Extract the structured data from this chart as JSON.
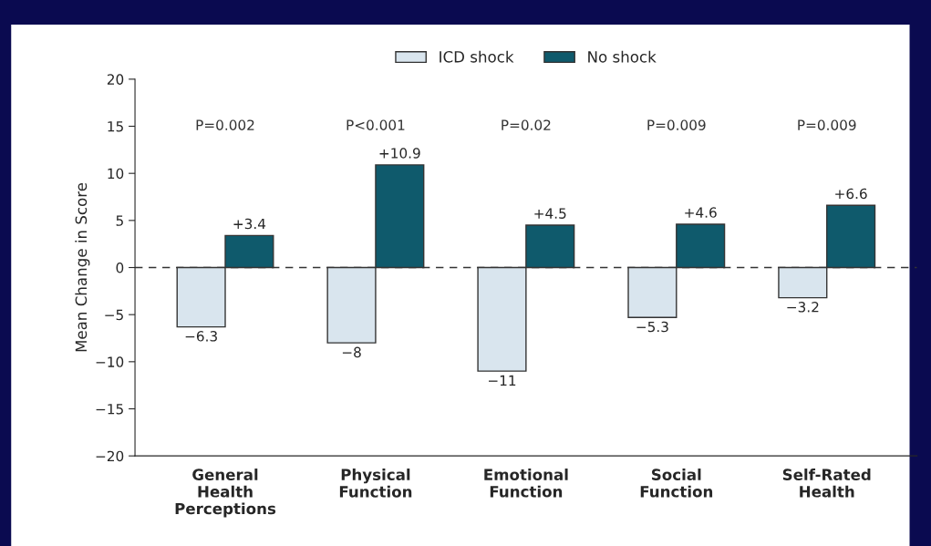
{
  "chart_data": {
    "type": "bar",
    "ylabel": "Mean Change in Score",
    "categories": [
      "General\nHealth\nPerceptions",
      "Physical\nFunction",
      "Emotional\nFunction",
      "Social\nFunction",
      "Self-Rated\nHealth"
    ],
    "series": [
      {
        "name": "ICD shock",
        "color": "#d9e5ee",
        "values": [
          -6.3,
          -8,
          -11,
          -5.3,
          -3.2
        ],
        "value_labels": [
          "−6.3",
          "−8",
          "−11",
          "−5.3",
          "−3.2"
        ]
      },
      {
        "name": "No shock",
        "color": "#0f5a6c",
        "values": [
          3.4,
          10.9,
          4.5,
          4.6,
          6.6
        ],
        "value_labels": [
          "+3.4",
          "+10.9",
          "+4.5",
          "+4.6",
          "+6.6"
        ]
      }
    ],
    "ylim": [
      -20,
      20
    ],
    "yticks": [
      -20,
      -15,
      -10,
      -5,
      0,
      5,
      10,
      15,
      20
    ],
    "ref_lines": [
      {
        "axis": "y",
        "value": 0,
        "line_style": "dashed",
        "color": "#333333"
      }
    ],
    "annotations": [
      "P=0.002",
      "P<0.001",
      "P=0.02",
      "P=0.009",
      "P=0.009"
    ],
    "legend": "top",
    "grid": false
  }
}
